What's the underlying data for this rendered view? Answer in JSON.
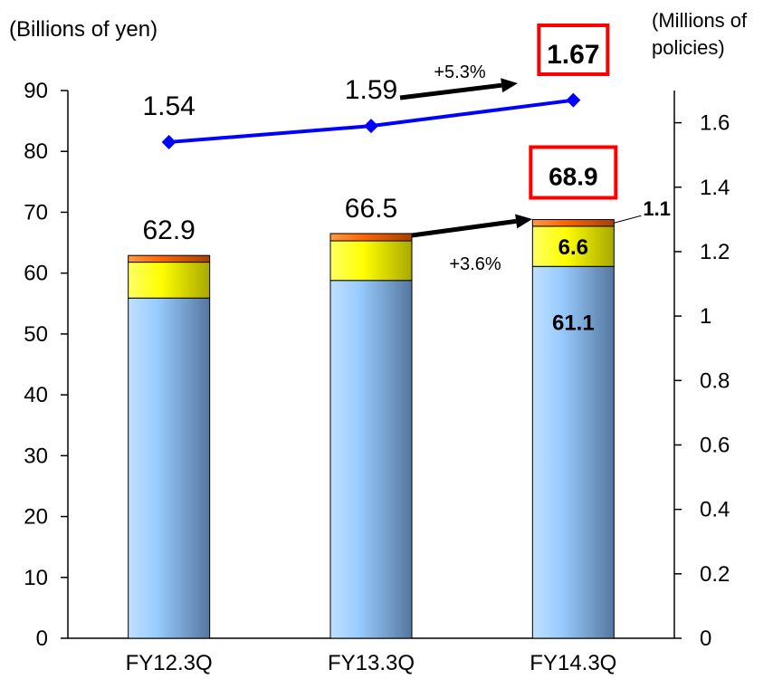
{
  "chart_data": {
    "type": "bar",
    "stacked": true,
    "categories": [
      "FY12.3Q",
      "FY13.3Q",
      "FY14.3Q"
    ],
    "y_left": {
      "label": "(Billions of yen)",
      "range": [
        0,
        90
      ],
      "ticks": [
        0,
        10,
        20,
        30,
        40,
        50,
        60,
        70,
        80,
        90
      ]
    },
    "y_right": {
      "label_line1": "(Millions of",
      "label_line2": "policies)",
      "range": [
        0,
        1.7
      ],
      "ticks": [
        "0",
        "0.2",
        "0.4",
        "0.6",
        "0.8",
        "1",
        "1.2",
        "1.4",
        "1.6"
      ],
      "tick_values": [
        0,
        0.2,
        0.4,
        0.6,
        0.8,
        1.0,
        1.2,
        1.4,
        1.6
      ]
    },
    "bar_series": [
      {
        "values": [
          55.9,
          58.8,
          61.1
        ],
        "color": "#99ccff"
      },
      {
        "values": [
          5.9,
          6.5,
          6.6
        ],
        "color": "#ffff00"
      },
      {
        "values": [
          1.1,
          1.2,
          1.1
        ],
        "color": "#ff6600"
      }
    ],
    "bar_totals": [
      "62.9",
      "66.5",
      "68.9"
    ],
    "latest_segment_labels": [
      "61.1",
      "6.6",
      "1.1"
    ],
    "line_series": {
      "axis": "right",
      "values": [
        1.54,
        1.59,
        1.67
      ],
      "labels": [
        "1.54",
        "1.59",
        "1.67"
      ],
      "color": "#0000ff"
    },
    "annotations": {
      "bar_growth": "+3.6%",
      "line_growth": "+5.3%"
    },
    "highlight_color": "#ff0000"
  }
}
